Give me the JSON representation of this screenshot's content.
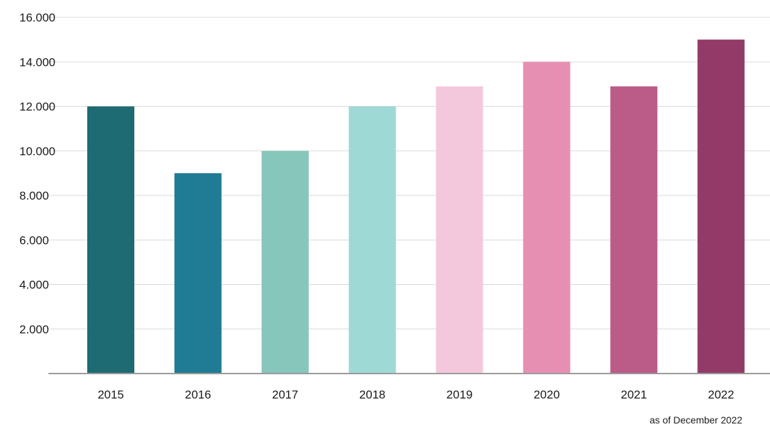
{
  "chart_data": {
    "type": "bar",
    "title": "",
    "xlabel": "",
    "ylabel": "",
    "categories": [
      "2015",
      "2016",
      "2017",
      "2018",
      "2019",
      "2020",
      "2021",
      "2022"
    ],
    "values": [
      12000,
      9000,
      10000,
      12000,
      12900,
      14000,
      12900,
      15000
    ],
    "bar_colors": [
      "#1e6b74",
      "#1f7c94",
      "#87c6ba",
      "#9ed9d6",
      "#f4c8dc",
      "#e78fb2",
      "#bb5c88",
      "#933b68"
    ],
    "ylim": [
      0,
      16000
    ],
    "yticks": [
      2000,
      4000,
      6000,
      8000,
      10000,
      12000,
      14000,
      16000
    ],
    "ytick_labels": [
      "2.000",
      "4.000",
      "6.000",
      "8.000",
      "10.000",
      "12.000",
      "14.000",
      "16.000"
    ],
    "grid": true,
    "legend": "none",
    "note": "as of December 2022"
  },
  "colors": {
    "grid": "#d9d9d9",
    "baseline": "#9a9a9a",
    "text": "#1a1a1a"
  }
}
